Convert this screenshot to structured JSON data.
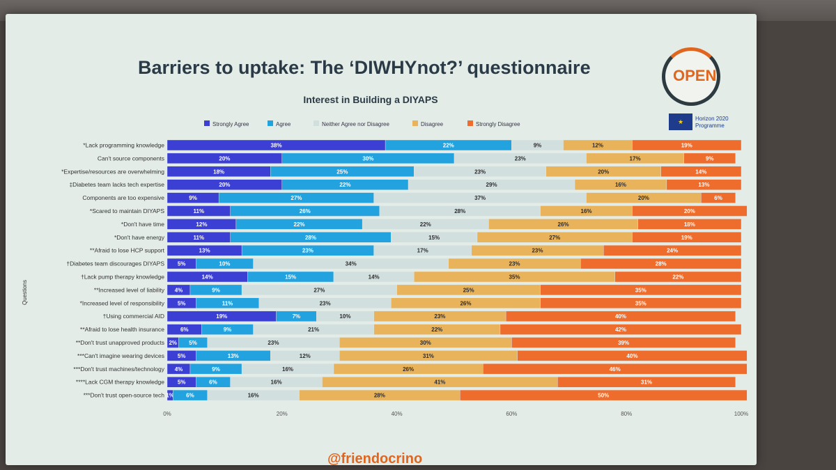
{
  "slide": {
    "title": "Barriers to uptake: The ‘DIWHYnot?’ questionnaire",
    "logo": "OPEN",
    "eu_label_line1": "Horizon 2020",
    "eu_label_line2": "Programme",
    "handle": "@friendocrino"
  },
  "chart_data": {
    "type": "bar",
    "orientation": "horizontal-stacked-100",
    "title": "Interest in Building a DIYAPS",
    "ylabel": "Questions",
    "xlabel": "",
    "xlim": [
      0,
      100
    ],
    "x_ticks": [
      "0%",
      "20%",
      "40%",
      "60%",
      "80%",
      "100%"
    ],
    "legend_position": "top",
    "categories": [
      "*Lack programming knowledge",
      "Can't source components",
      "*Expertise/resources are overwhelming",
      "‡Diabetes team lacks tech expertise",
      "Components are too expensive",
      "*Scared to maintain DIYAPS",
      "*Don't have time",
      "*Don't have energy",
      "**Afraid to lose HCP support",
      "†Diabetes team discourages DIYAPS",
      "†Lack pump therapy knowledge",
      "**Increased level of liability",
      "*Increased level of responsibility",
      "†Using commercial AID",
      "**Afraid to lose health insurance",
      "**Don't trust unapproved products",
      "***Can't imagine wearing devices",
      "***Don't trust machines/technology",
      "****Lack CGM therapy knowledge",
      "***Don't trust open-source tech"
    ],
    "series": [
      {
        "name": "Strongly Agree",
        "color": "#3b3fd4",
        "values": [
          38,
          20,
          18,
          20,
          9,
          11,
          12,
          11,
          13,
          5,
          14,
          4,
          5,
          19,
          6,
          2,
          5,
          4,
          5,
          1
        ]
      },
      {
        "name": "Agree",
        "color": "#23a2e0",
        "values": [
          22,
          30,
          25,
          22,
          27,
          26,
          22,
          28,
          23,
          10,
          15,
          9,
          11,
          7,
          9,
          5,
          13,
          9,
          6,
          6
        ]
      },
      {
        "name": "Neither Agree nor Disagree",
        "color": "#d2dfdf",
        "values": [
          9,
          23,
          23,
          29,
          37,
          28,
          22,
          15,
          17,
          34,
          14,
          27,
          23,
          10,
          21,
          23,
          12,
          16,
          16,
          16
        ]
      },
      {
        "name": "Disagree",
        "color": "#e9b35c",
        "values": [
          12,
          17,
          20,
          16,
          20,
          16,
          26,
          27,
          23,
          23,
          35,
          25,
          26,
          23,
          22,
          30,
          31,
          26,
          41,
          28
        ]
      },
      {
        "name": "Strongly Disagree",
        "color": "#ee6c2c",
        "values": [
          19,
          9,
          14,
          13,
          6,
          20,
          18,
          19,
          24,
          28,
          22,
          35,
          35,
          40,
          42,
          39,
          40,
          46,
          31,
          50
        ]
      }
    ]
  }
}
